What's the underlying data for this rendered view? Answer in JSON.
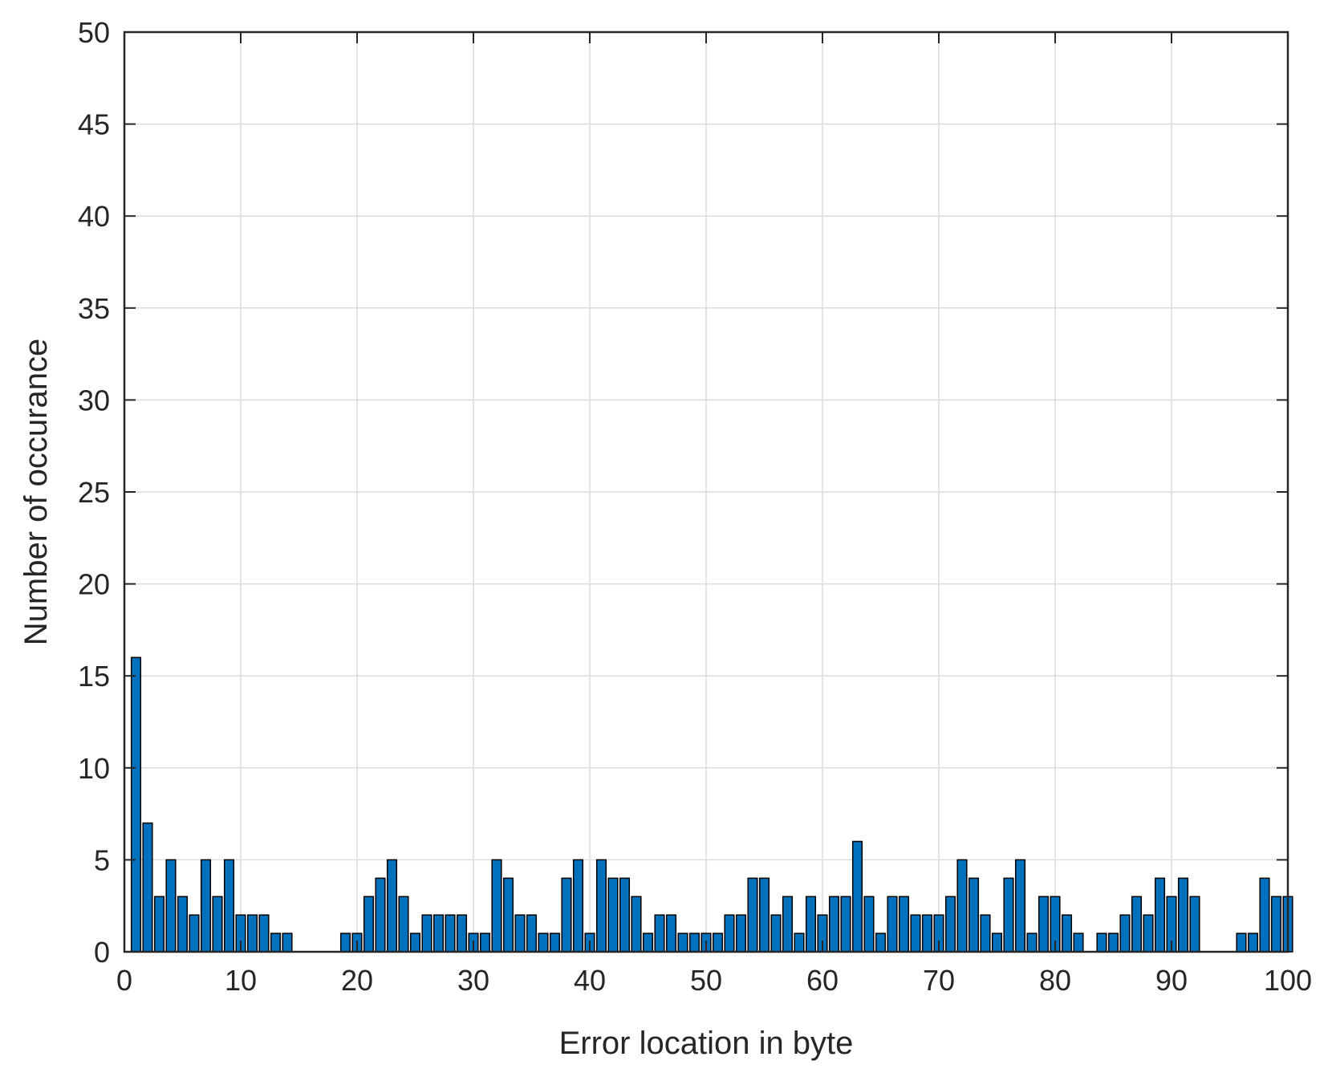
{
  "chart_data": {
    "type": "bar",
    "xlabel": "Error location in byte",
    "ylabel": "Number of occurance",
    "xlim": [
      0,
      100
    ],
    "ylim": [
      0,
      50
    ],
    "xticks": [
      0,
      10,
      20,
      30,
      40,
      50,
      60,
      70,
      80,
      90,
      100
    ],
    "yticks": [
      0,
      5,
      10,
      15,
      20,
      25,
      30,
      35,
      40,
      45,
      50
    ],
    "grid": true,
    "bar_color": "#0072bd",
    "bar_edge_color": "#000000",
    "x": [
      1,
      2,
      3,
      4,
      5,
      6,
      7,
      8,
      9,
      10,
      11,
      12,
      13,
      14,
      15,
      16,
      17,
      18,
      19,
      20,
      21,
      22,
      23,
      24,
      25,
      26,
      27,
      28,
      29,
      30,
      31,
      32,
      33,
      34,
      35,
      36,
      37,
      38,
      39,
      40,
      41,
      42,
      43,
      44,
      45,
      46,
      47,
      48,
      49,
      50,
      51,
      52,
      53,
      54,
      55,
      56,
      57,
      58,
      59,
      60,
      61,
      62,
      63,
      64,
      65,
      66,
      67,
      68,
      69,
      70,
      71,
      72,
      73,
      74,
      75,
      76,
      77,
      78,
      79,
      80,
      81,
      82,
      83,
      84,
      85,
      86,
      87,
      88,
      89,
      90,
      91,
      92,
      93,
      94,
      95,
      96,
      97,
      98,
      99,
      100
    ],
    "values": [
      16,
      7,
      3,
      5,
      3,
      2,
      5,
      3,
      5,
      2,
      2,
      2,
      1,
      1,
      0,
      0,
      0,
      0,
      1,
      1,
      3,
      4,
      5,
      3,
      1,
      2,
      2,
      2,
      2,
      1,
      1,
      5,
      4,
      2,
      2,
      1,
      1,
      4,
      5,
      1,
      5,
      4,
      4,
      3,
      1,
      2,
      2,
      1,
      1,
      1,
      1,
      2,
      2,
      4,
      4,
      2,
      3,
      1,
      3,
      2,
      3,
      3,
      6,
      3,
      1,
      3,
      3,
      2,
      2,
      2,
      3,
      5,
      4,
      2,
      1,
      4,
      5,
      1,
      3,
      3,
      2,
      1,
      0,
      1,
      1,
      2,
      3,
      2,
      4,
      3,
      4,
      3,
      0,
      0,
      0,
      1,
      1,
      4,
      3,
      3
    ]
  }
}
